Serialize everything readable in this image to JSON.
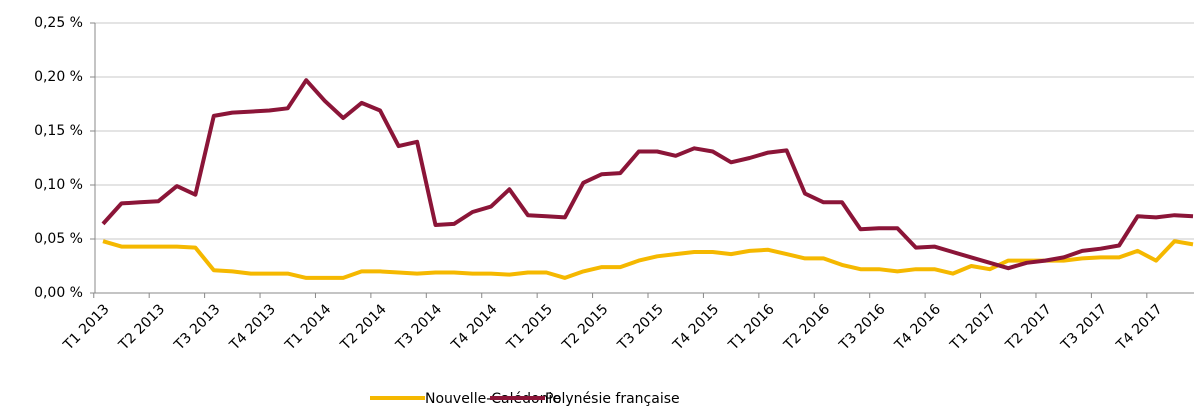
{
  "chart_data": {
    "type": "line",
    "categories": [
      "T1 2013",
      null,
      null,
      "T2 2013",
      null,
      null,
      "T3 2013",
      null,
      null,
      "T4 2013",
      null,
      null,
      "T1 2014",
      null,
      null,
      "T2 2014",
      null,
      null,
      "T3 2014",
      null,
      null,
      "T4 2014",
      null,
      null,
      "T1 2015",
      null,
      null,
      "T2 2015",
      null,
      null,
      "T3 2015",
      null,
      null,
      "T4 2015",
      null,
      null,
      "T1 2016",
      null,
      null,
      "T2 2016",
      null,
      null,
      "T3 2016",
      null,
      null,
      "T4 2016",
      null,
      null,
      "T1 2017",
      null,
      null,
      "T2 2017",
      null,
      null,
      "T3 2017",
      null,
      null,
      "T4 2017",
      null,
      null
    ],
    "series": [
      {
        "name": "Nouvelle-Calédonie",
        "color": "#f5b800",
        "values": [
          0.048,
          0.043,
          0.043,
          0.043,
          0.043,
          0.042,
          0.021,
          0.02,
          0.018,
          0.018,
          0.018,
          0.014,
          0.014,
          0.014,
          0.02,
          0.02,
          0.019,
          0.018,
          0.019,
          0.019,
          0.018,
          0.018,
          0.017,
          0.019,
          0.019,
          0.014,
          0.02,
          0.024,
          0.024,
          0.03,
          0.034,
          0.036,
          0.038,
          0.038,
          0.036,
          0.039,
          0.04,
          0.036,
          0.032,
          0.032,
          0.026,
          0.022,
          0.022,
          0.02,
          0.022,
          0.022,
          0.018,
          0.025,
          0.022,
          0.03,
          0.03,
          0.03,
          0.03,
          0.032,
          0.033,
          0.033,
          0.039,
          0.03,
          0.048,
          0.045
        ]
      },
      {
        "name": "Polynésie française",
        "color": "#8b1538",
        "values": [
          0.064,
          0.083,
          0.084,
          0.085,
          0.099,
          0.091,
          0.164,
          0.167,
          0.168,
          0.169,
          0.171,
          0.197,
          0.178,
          0.162,
          0.176,
          0.169,
          0.136,
          0.14,
          0.063,
          0.064,
          0.075,
          0.08,
          0.096,
          0.072,
          0.071,
          0.07,
          0.102,
          0.11,
          0.111,
          0.131,
          0.131,
          0.127,
          0.134,
          0.131,
          0.121,
          0.125,
          0.13,
          0.132,
          0.092,
          0.084,
          0.084,
          0.059,
          0.06,
          0.06,
          0.042,
          0.043,
          0.038,
          0.033,
          0.028,
          0.023,
          0.028,
          0.03,
          0.033,
          0.039,
          0.041,
          0.044,
          0.071,
          0.07,
          0.072,
          0.071
        ]
      }
    ],
    "ylim": [
      0,
      0.25
    ],
    "yticks": [
      {
        "value": 0,
        "label": "0,00 %"
      },
      {
        "value": 0.05,
        "label": "0,05 %"
      },
      {
        "value": 0.1,
        "label": "0,10 %"
      },
      {
        "value": 0.15,
        "label": "0,15 %"
      },
      {
        "value": 0.2,
        "label": "0,20 %"
      },
      {
        "value": 0.25,
        "label": "0,25 %"
      }
    ],
    "grid": true,
    "legend": "bottom"
  }
}
